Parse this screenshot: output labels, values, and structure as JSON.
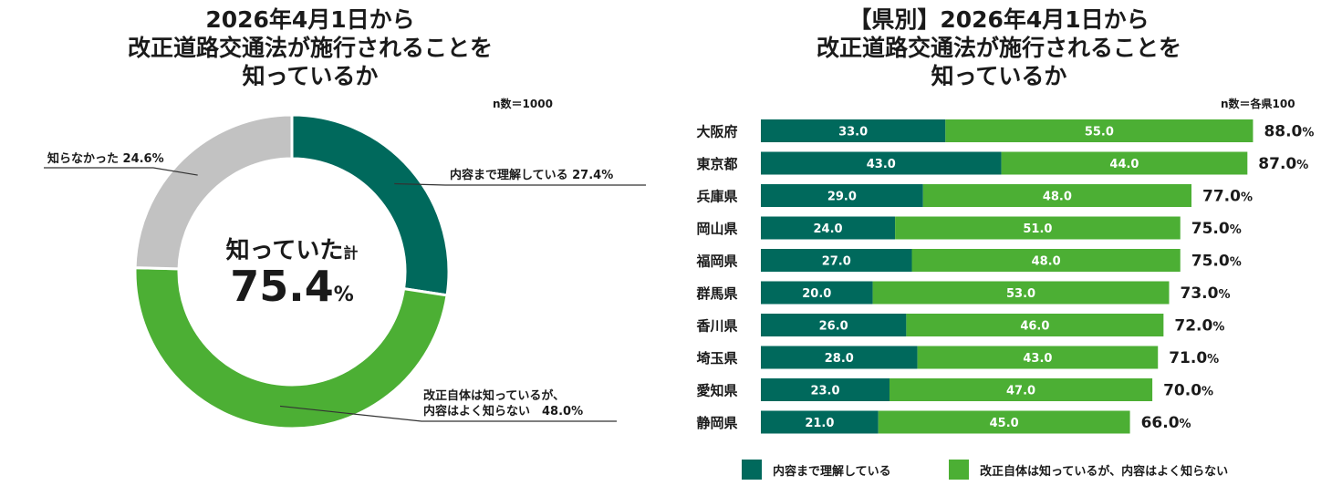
{
  "colors": {
    "dark": "#00695c",
    "light": "#4caf34",
    "gray": "#c2c2c2",
    "text": "#1a1a1a"
  },
  "left": {
    "title_lines": [
      "2026年4月1日から",
      "改正道路交通法が施行されることを",
      "知っているか"
    ],
    "n_label": "n数＝1000",
    "center_label": "知っていた",
    "center_suffix": "計",
    "center_value": "75.4",
    "center_unit": "%"
  },
  "right": {
    "title_lines": [
      "【県別】2026年4月1日から",
      "改正道路交通法が施行されることを",
      "知っているか"
    ],
    "n_label": "n数＝各県100"
  },
  "chart_data": [
    {
      "type": "pie",
      "variant": "donut",
      "title": "2026年4月1日から改正道路交通法が施行されることを知っているか",
      "categories": [
        "内容まで理解している",
        "改正自体は知っているが、内容はよく知らない",
        "知らなかった"
      ],
      "values": [
        27.4,
        48.0,
        24.6
      ],
      "slice_labels": [
        [
          "内容まで理解している 27.4%"
        ],
        [
          "改正自体は知っているが、",
          "内容はよく知らない　48.0%"
        ],
        [
          "知らなかった 24.6%"
        ]
      ],
      "total_label": "知っていた計 75.4%"
    },
    {
      "type": "bar",
      "orientation": "horizontal",
      "stacked": true,
      "title": "【県別】2026年4月1日から改正道路交通法が施行されることを知っているか",
      "categories": [
        "大阪府",
        "東京都",
        "兵庫県",
        "岡山県",
        "福岡県",
        "群馬県",
        "香川県",
        "埼玉県",
        "愛知県",
        "静岡県"
      ],
      "series": [
        {
          "name": "内容まで理解している",
          "values": [
            33.0,
            43.0,
            29.0,
            24.0,
            27.0,
            20.0,
            26.0,
            28.0,
            23.0,
            21.0
          ]
        },
        {
          "name": "改正自体は知っているが、内容はよく知らない",
          "values": [
            55.0,
            44.0,
            48.0,
            51.0,
            48.0,
            53.0,
            46.0,
            43.0,
            47.0,
            45.0
          ]
        }
      ],
      "totals": [
        88.0,
        87.0,
        77.0,
        75.0,
        75.0,
        73.0,
        72.0,
        71.0,
        70.0,
        66.0
      ],
      "value_unit": "%",
      "legend_position": "bottom"
    }
  ]
}
